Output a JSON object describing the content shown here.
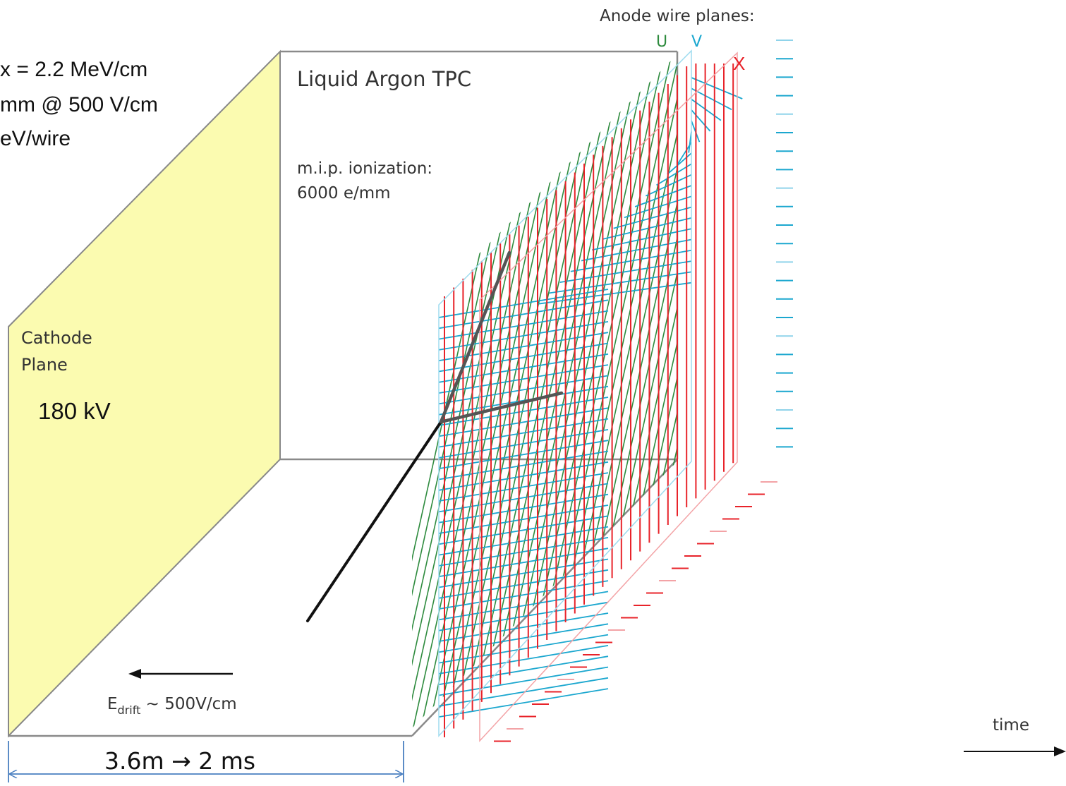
{
  "labels": {
    "anode_title": "Anode wire planes:",
    "u": "U",
    "v": "V",
    "x": "X",
    "tpc_title": "Liquid Argon TPC",
    "mip_line1": "m.i.p. ionization:",
    "mip_line2": "6000 e/mm",
    "cathode_line1": "Cathode",
    "cathode_line2": "Plane",
    "voltage": "180 kV",
    "drift_main": "E",
    "drift_sub": "drift",
    "drift_rest": " ~ 500V/cm",
    "length": "3.6m → 2 ms",
    "time": "time",
    "cut_line1": "x = 2.2 MeV/cm",
    "cut_line2": "mm @ 500 V/cm",
    "cut_line3": "eV/wire"
  },
  "colors": {
    "cathode_fill": "#fbfbb0",
    "u_wires": "#2e8b3e",
    "v_wires": "#1ba7cf",
    "x_wires": "#e8232a",
    "x_label": "#e8232a",
    "u_label": "#2e8b3e",
    "v_label": "#1ba7cf",
    "box_edge": "#7a7a7a",
    "dimension_arrow": "#4a7fc0",
    "text": "#333333"
  }
}
